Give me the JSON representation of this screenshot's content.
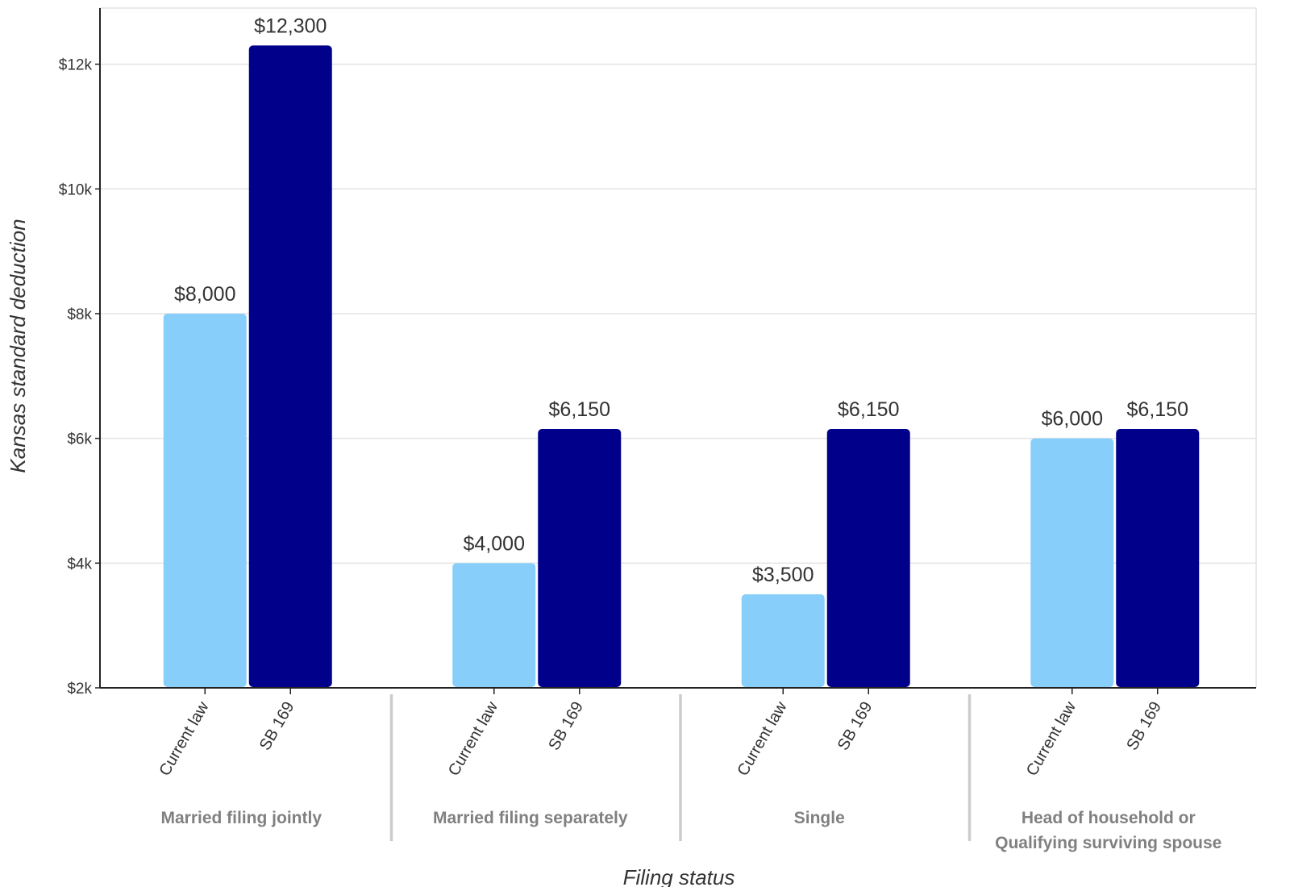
{
  "chart_data": {
    "type": "bar",
    "xlabel": "Filing status",
    "ylabel": "Kansas standard deduction",
    "ylim": [
      2000,
      12900
    ],
    "yticks": [
      {
        "value": 2000,
        "label": "$2k"
      },
      {
        "value": 4000,
        "label": "$4k"
      },
      {
        "value": 6000,
        "label": "$6k"
      },
      {
        "value": 8000,
        "label": "$8k"
      },
      {
        "value": 10000,
        "label": "$10k"
      },
      {
        "value": 12000,
        "label": "$12k"
      }
    ],
    "grid": true,
    "colors": {
      "Current law": "#87CEFA",
      "SB 169": "#00008B"
    },
    "groups": [
      {
        "label": [
          "Married filing jointly"
        ],
        "bars": [
          {
            "category": "Current law",
            "value": 8000,
            "label": "$8,000"
          },
          {
            "category": "SB 169",
            "value": 12300,
            "label": "$12,300"
          }
        ]
      },
      {
        "label": [
          "Married filing separately"
        ],
        "bars": [
          {
            "category": "Current law",
            "value": 4000,
            "label": "$4,000"
          },
          {
            "category": "SB 169",
            "value": 6150,
            "label": "$6,150"
          }
        ]
      },
      {
        "label": [
          "Single"
        ],
        "bars": [
          {
            "category": "Current law",
            "value": 3500,
            "label": "$3,500"
          },
          {
            "category": "SB 169",
            "value": 6150,
            "label": "$6,150"
          }
        ]
      },
      {
        "label": [
          "Head of household or",
          "Qualifying surviving spouse"
        ],
        "bars": [
          {
            "category": "Current law",
            "value": 6000,
            "label": "$6,000"
          },
          {
            "category": "SB 169",
            "value": 6150,
            "label": "$6,150"
          }
        ]
      }
    ]
  }
}
